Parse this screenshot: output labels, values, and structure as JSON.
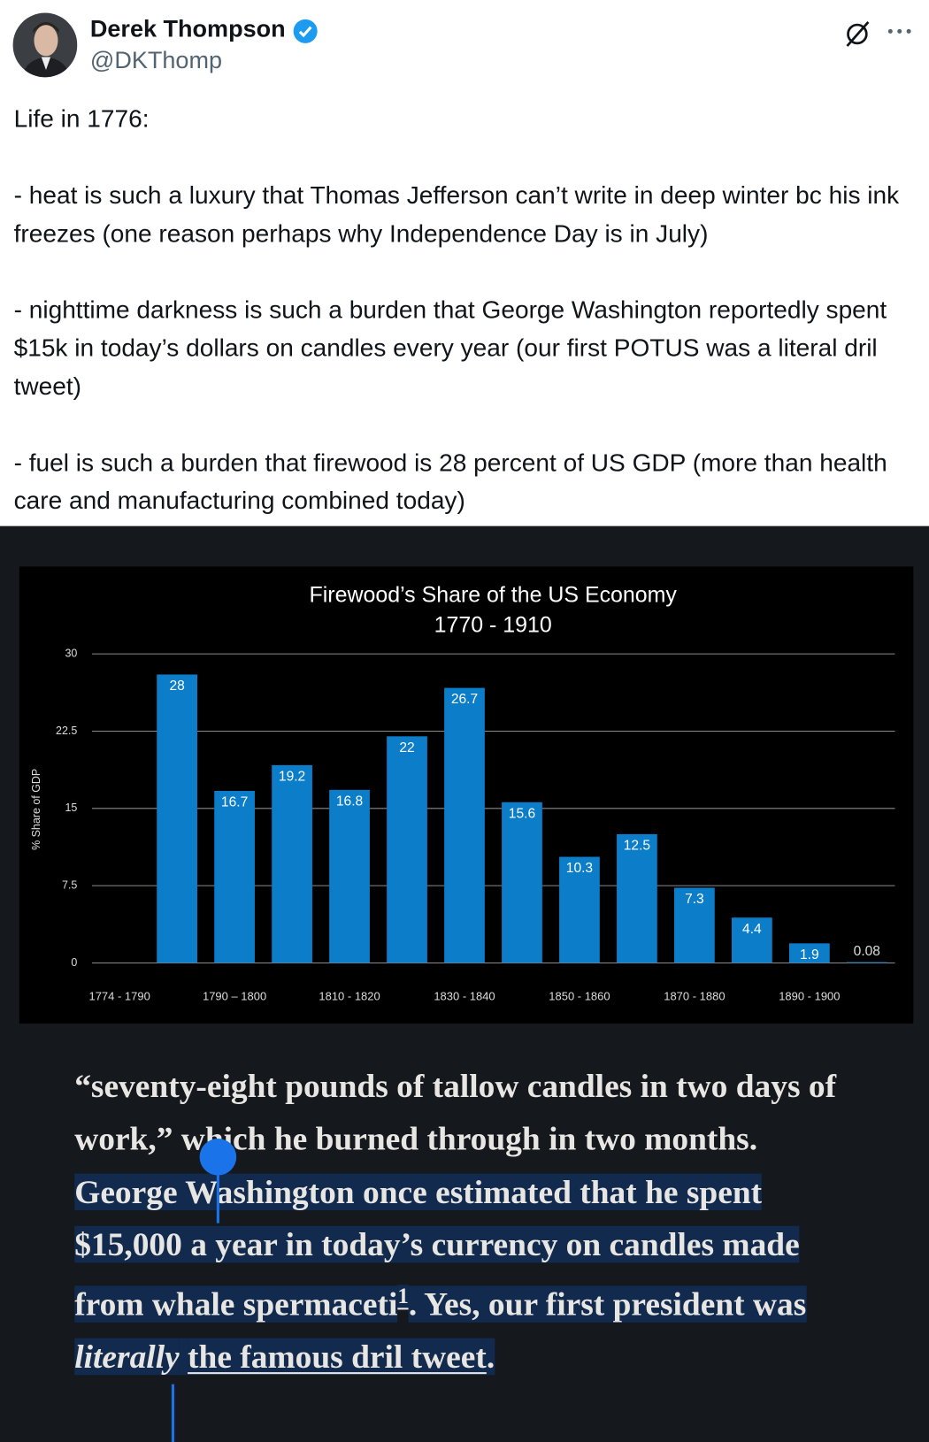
{
  "author": {
    "name": "Derek Thompson",
    "handle": "@DKThomp"
  },
  "tweet": {
    "paragraphs": [
      "Life in 1776:",
      "- heat is such a luxury that Thomas Jefferson can’t write in deep winter bc his ink freezes (one reason perhaps why Independence Day is in July)",
      "- nighttime darkness is such a burden that George Washington reportedly spent $15k in today’s dollars on candles every year (our first POTUS was a literal dril tweet)",
      "- fuel is such a burden that firewood is 28 percent of US GDP (more than health care and manufacturing combined today)"
    ]
  },
  "chart_data": {
    "type": "bar",
    "title": "Firewood’s Share of the US Economy",
    "subtitle": "1770 - 1910",
    "ylabel": "% Share of GDP",
    "categories": [
      "1774 - 1790",
      null,
      "1790 – 1800",
      null,
      "1810 - 1820",
      null,
      "1830 - 1840",
      null,
      "1850 - 1860",
      null,
      "1870 - 1880",
      null,
      "1890 - 1900",
      null
    ],
    "values": [
      null,
      28,
      16.7,
      19.2,
      16.8,
      22,
      26.7,
      15.6,
      10.3,
      12.5,
      7.3,
      4.4,
      1.9,
      0.08
    ],
    "color": "#0b7dc9",
    "ylim": [
      0,
      30
    ],
    "yticks": [
      0,
      7.5,
      15,
      22.5,
      30
    ],
    "grid": true
  },
  "quote": {
    "before": "“seventy-eight pounds of tallow candles in two days of work,” which he burned through in two months.",
    "highlighted": "George Washington once estimated that he spent $15,000 a year in today’s currency on candles made from whale spermaceti",
    "footnote": "1",
    "after": ". Yes, our first president was",
    "italic": "literally",
    "link": "the famous dril tweet",
    "end": "."
  }
}
